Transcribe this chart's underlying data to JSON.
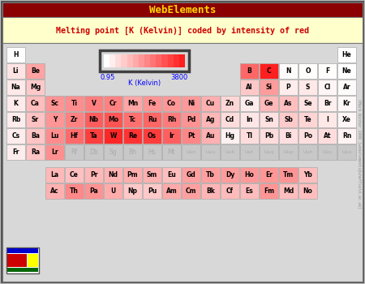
{
  "title_bar": "WebElements",
  "title_bar_bg": "#8B0000",
  "title_bar_fg": "#FFD700",
  "subtitle": "Melting point [K (Kelvin)] coded by intensity of red",
  "subtitle_fg": "#CC0000",
  "header_bg": "#FFFFCC",
  "body_bg": "#C8C8C8",
  "outer_bg": "#C0C0C0",
  "colorbar_min": 0.95,
  "colorbar_max": 3800,
  "colorbar_label": "K (Kelvin)",
  "watermark": "©Mark Winter 1999 [webelements@sheffield.ac.uk]",
  "elements": {
    "H": {
      "period": 1,
      "group": 1,
      "mp": 14.0
    },
    "He": {
      "period": 1,
      "group": 18,
      "mp": 0.95
    },
    "Li": {
      "period": 2,
      "group": 1,
      "mp": 453.7
    },
    "Be": {
      "period": 2,
      "group": 2,
      "mp": 1560
    },
    "B": {
      "period": 2,
      "group": 13,
      "mp": 2573
    },
    "C": {
      "period": 2,
      "group": 14,
      "mp": 3823
    },
    "N": {
      "period": 2,
      "group": 15,
      "mp": 63.3
    },
    "O": {
      "period": 2,
      "group": 16,
      "mp": 54.4
    },
    "F": {
      "period": 2,
      "group": 17,
      "mp": 53.5
    },
    "Ne": {
      "period": 2,
      "group": 18,
      "mp": 24.6
    },
    "Na": {
      "period": 3,
      "group": 1,
      "mp": 371
    },
    "Mg": {
      "period": 3,
      "group": 2,
      "mp": 922
    },
    "Al": {
      "period": 3,
      "group": 13,
      "mp": 933
    },
    "Si": {
      "period": 3,
      "group": 14,
      "mp": 1687
    },
    "P": {
      "period": 3,
      "group": 15,
      "mp": 317
    },
    "S": {
      "period": 3,
      "group": 16,
      "mp": 388
    },
    "Cl": {
      "period": 3,
      "group": 17,
      "mp": 172
    },
    "Ar": {
      "period": 3,
      "group": 18,
      "mp": 83.8
    },
    "K": {
      "period": 4,
      "group": 1,
      "mp": 336.5
    },
    "Ca": {
      "period": 4,
      "group": 2,
      "mp": 1112
    },
    "Sc": {
      "period": 4,
      "group": 3,
      "mp": 1812
    },
    "Ti": {
      "period": 4,
      "group": 4,
      "mp": 1933
    },
    "V": {
      "period": 4,
      "group": 5,
      "mp": 2160
    },
    "Cr": {
      "period": 4,
      "group": 6,
      "mp": 2130
    },
    "Mn": {
      "period": 4,
      "group": 7,
      "mp": 1517
    },
    "Fe": {
      "period": 4,
      "group": 8,
      "mp": 1808
    },
    "Co": {
      "period": 4,
      "group": 9,
      "mp": 1768
    },
    "Ni": {
      "period": 4,
      "group": 10,
      "mp": 1726
    },
    "Cu": {
      "period": 4,
      "group": 11,
      "mp": 1358
    },
    "Zn": {
      "period": 4,
      "group": 12,
      "mp": 693
    },
    "Ga": {
      "period": 4,
      "group": 13,
      "mp": 302.9
    },
    "Ge": {
      "period": 4,
      "group": 14,
      "mp": 1211
    },
    "As": {
      "period": 4,
      "group": 15,
      "mp": 1090
    },
    "Se": {
      "period": 4,
      "group": 16,
      "mp": 494
    },
    "Br": {
      "period": 4,
      "group": 17,
      "mp": 265.9
    },
    "Kr": {
      "period": 4,
      "group": 18,
      "mp": 115.8
    },
    "Rb": {
      "period": 5,
      "group": 1,
      "mp": 312.6
    },
    "Sr": {
      "period": 5,
      "group": 2,
      "mp": 1042
    },
    "Y": {
      "period": 5,
      "group": 3,
      "mp": 1799
    },
    "Zr": {
      "period": 5,
      "group": 4,
      "mp": 2125
    },
    "Nb": {
      "period": 5,
      "group": 5,
      "mp": 2741
    },
    "Mo": {
      "period": 5,
      "group": 6,
      "mp": 2890
    },
    "Tc": {
      "period": 5,
      "group": 7,
      "mp": 2430
    },
    "Ru": {
      "period": 5,
      "group": 8,
      "mp": 2583
    },
    "Rh": {
      "period": 5,
      "group": 9,
      "mp": 2236
    },
    "Pd": {
      "period": 5,
      "group": 10,
      "mp": 1828
    },
    "Ag": {
      "period": 5,
      "group": 11,
      "mp": 1235
    },
    "Cd": {
      "period": 5,
      "group": 12,
      "mp": 594
    },
    "In": {
      "period": 5,
      "group": 13,
      "mp": 429.8
    },
    "Sn": {
      "period": 5,
      "group": 14,
      "mp": 505
    },
    "Sb": {
      "period": 5,
      "group": 15,
      "mp": 904
    },
    "Te": {
      "period": 5,
      "group": 16,
      "mp": 722.7
    },
    "I": {
      "period": 5,
      "group": 17,
      "mp": 386.9
    },
    "Xe": {
      "period": 5,
      "group": 18,
      "mp": 161.4
    },
    "Cs": {
      "period": 6,
      "group": 1,
      "mp": 301.6
    },
    "Ba": {
      "period": 6,
      "group": 2,
      "mp": 1000
    },
    "Lu": {
      "period": 6,
      "group": 3,
      "mp": 1936
    },
    "Hf": {
      "period": 6,
      "group": 4,
      "mp": 2500
    },
    "Ta": {
      "period": 6,
      "group": 5,
      "mp": 3269
    },
    "W": {
      "period": 6,
      "group": 6,
      "mp": 3680
    },
    "Re": {
      "period": 6,
      "group": 7,
      "mp": 3453
    },
    "Os": {
      "period": 6,
      "group": 8,
      "mp": 3300
    },
    "Ir": {
      "period": 6,
      "group": 9,
      "mp": 2716
    },
    "Pt": {
      "period": 6,
      "group": 10,
      "mp": 2041
    },
    "Au": {
      "period": 6,
      "group": 11,
      "mp": 1337
    },
    "Hg": {
      "period": 6,
      "group": 12,
      "mp": 234.3
    },
    "Tl": {
      "period": 6,
      "group": 13,
      "mp": 577
    },
    "Pb": {
      "period": 6,
      "group": 14,
      "mp": 600.6
    },
    "Bi": {
      "period": 6,
      "group": 15,
      "mp": 544.6
    },
    "Po": {
      "period": 6,
      "group": 16,
      "mp": 527
    },
    "At": {
      "period": 6,
      "group": 17,
      "mp": 575
    },
    "Rn": {
      "period": 6,
      "group": 18,
      "mp": 202
    },
    "Fr": {
      "period": 7,
      "group": 1,
      "mp": 300
    },
    "Ra": {
      "period": 7,
      "group": 2,
      "mp": 973
    },
    "Lr": {
      "period": 7,
      "group": 3,
      "mp": 1900
    },
    "Rf": {
      "period": 7,
      "group": 4,
      "mp": null
    },
    "Db": {
      "period": 7,
      "group": 5,
      "mp": null
    },
    "Sg": {
      "period": 7,
      "group": 6,
      "mp": null
    },
    "Bh": {
      "period": 7,
      "group": 7,
      "mp": null
    },
    "Hs": {
      "period": 7,
      "group": 8,
      "mp": null
    },
    "Mt": {
      "period": 7,
      "group": 9,
      "mp": null
    },
    "Uun": {
      "period": 7,
      "group": 10,
      "mp": null
    },
    "Uuu": {
      "period": 7,
      "group": 11,
      "mp": null
    },
    "Uub": {
      "period": 7,
      "group": 12,
      "mp": null
    },
    "Uut": {
      "period": 7,
      "group": 13,
      "mp": null
    },
    "Uuq": {
      "period": 7,
      "group": 14,
      "mp": null
    },
    "Uup": {
      "period": 7,
      "group": 15,
      "mp": null
    },
    "Uuh": {
      "period": 7,
      "group": 16,
      "mp": null
    },
    "Uus": {
      "period": 7,
      "group": 17,
      "mp": null
    },
    "Uuo": {
      "period": 7,
      "group": 18,
      "mp": null
    },
    "La": {
      "period": 8,
      "group": 3,
      "mp": 1193
    },
    "Ce": {
      "period": 8,
      "group": 4,
      "mp": 1068
    },
    "Pr": {
      "period": 8,
      "group": 5,
      "mp": 1204
    },
    "Nd": {
      "period": 8,
      "group": 6,
      "mp": 1289
    },
    "Pm": {
      "period": 8,
      "group": 7,
      "mp": 1373
    },
    "Sm": {
      "period": 8,
      "group": 8,
      "mp": 1345
    },
    "Eu": {
      "period": 8,
      "group": 9,
      "mp": 1095
    },
    "Gd": {
      "period": 8,
      "group": 10,
      "mp": 1585
    },
    "Tb": {
      "period": 8,
      "group": 11,
      "mp": 1629
    },
    "Dy": {
      "period": 8,
      "group": 12,
      "mp": 1682
    },
    "Ho": {
      "period": 8,
      "group": 13,
      "mp": 1734
    },
    "Er": {
      "period": 8,
      "group": 14,
      "mp": 1770
    },
    "Tm": {
      "period": 8,
      "group": 15,
      "mp": 1818
    },
    "Yb": {
      "period": 8,
      "group": 16,
      "mp": 1097
    },
    "Ac": {
      "period": 9,
      "group": 3,
      "mp": 1323
    },
    "Th": {
      "period": 9,
      "group": 4,
      "mp": 2023
    },
    "Pa": {
      "period": 9,
      "group": 5,
      "mp": 1845
    },
    "U": {
      "period": 9,
      "group": 6,
      "mp": 1408
    },
    "Np": {
      "period": 9,
      "group": 7,
      "mp": 913
    },
    "Pu": {
      "period": 9,
      "group": 8,
      "mp": 913
    },
    "Am": {
      "period": 9,
      "group": 9,
      "mp": 1449
    },
    "Cm": {
      "period": 9,
      "group": 10,
      "mp": 1613
    },
    "Bk": {
      "period": 9,
      "group": 11,
      "mp": 1259
    },
    "Cf": {
      "period": 9,
      "group": 12,
      "mp": 1173
    },
    "Es": {
      "period": 9,
      "group": 13,
      "mp": 1133
    },
    "Fm": {
      "period": 9,
      "group": 14,
      "mp": 1800
    },
    "Md": {
      "period": 9,
      "group": 15,
      "mp": 1100
    },
    "No": {
      "period": 9,
      "group": 16,
      "mp": 1100
    }
  }
}
